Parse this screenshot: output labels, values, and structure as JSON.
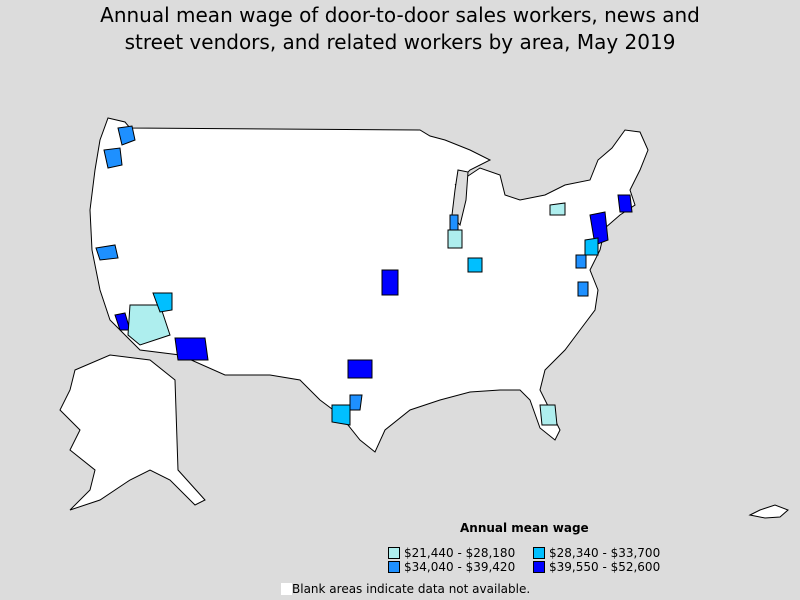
{
  "title_line1": "Annual mean wage of door-to-door sales workers, news and",
  "title_line2": "street vendors, and related workers by area, May 2019",
  "legend": {
    "title": "Annual mean wage",
    "items": [
      {
        "label": "$21,440 - $28,180",
        "color": "#aeeeee"
      },
      {
        "label": "$28,340 - $33,700",
        "color": "#00bfff"
      },
      {
        "label": "$34,040 - $39,420",
        "color": "#1e90ff"
      },
      {
        "label": "$39,550 - $52,600",
        "color": "#0000ff"
      }
    ],
    "note": "Blank areas indicate data not available."
  }
}
